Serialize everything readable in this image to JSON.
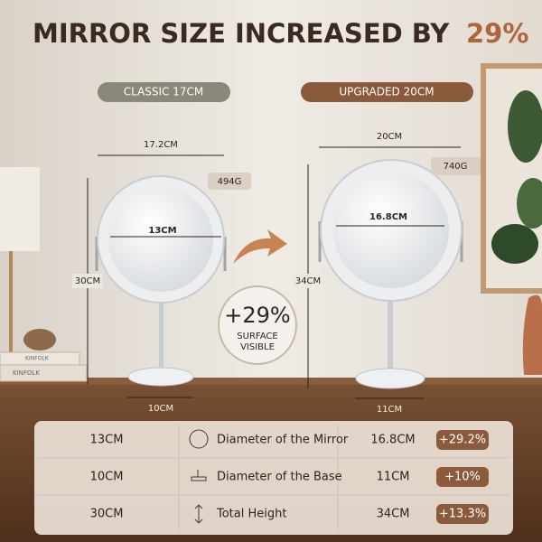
{
  "header": {
    "title": "MIRROR SIZE INCREASED BY",
    "highlight": "29%"
  },
  "classic": {
    "label": "CLASSIC 17CM",
    "width": "17.2CM",
    "weight": "494G",
    "mirror": "13CM",
    "height": "30CM",
    "base": "10CM"
  },
  "upgraded": {
    "label": "UPGRADED 20CM",
    "width": "20CM",
    "weight": "740G",
    "mirror": "16.8CM",
    "height": "34CM",
    "base": "11CM"
  },
  "badge": {
    "value": "+29%",
    "line1": "SURFACE",
    "line2": "VISIBLE"
  },
  "books": [
    "KINFOLK",
    "KINFOLK"
  ],
  "table": {
    "rows": [
      [
        "13CM",
        "Diameter of the Mirror",
        "16.8CM",
        "+29.2%"
      ],
      [
        "10CM",
        "Diameter of the Base",
        "11CM",
        "+10%"
      ],
      [
        "30CM",
        "Total Height",
        "34CM",
        "+13.3%"
      ]
    ]
  }
}
